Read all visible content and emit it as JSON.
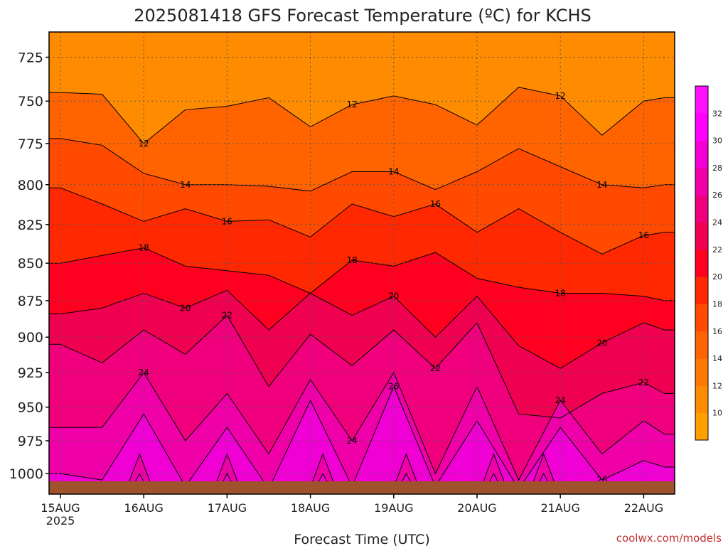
{
  "chart_data": {
    "type": "heatmap",
    "title": "2025081418 GFS Forecast Temperature (ºC) for KCHS",
    "xlabel": "Forecast Time (UTC)",
    "ylabel": "",
    "watermark": "coolwx.com/models",
    "x_ticks": [
      "15AUG",
      "16AUG",
      "17AUG",
      "18AUG",
      "19AUG",
      "20AUG",
      "21AUG",
      "22AUG"
    ],
    "x_year": "2025",
    "y_ticks": [
      725,
      750,
      775,
      800,
      825,
      850,
      875,
      900,
      925,
      950,
      975,
      1000
    ],
    "ylim": [
      1016,
      711
    ],
    "y_scale": "log",
    "colorbar": {
      "ticks": [
        10,
        12,
        14,
        16,
        18,
        20,
        22,
        24,
        26,
        28,
        30,
        32
      ],
      "colors": [
        "#ffa000",
        "#ff8c00",
        "#ff7800",
        "#ff6400",
        "#ff4a00",
        "#ff2800",
        "#ff0020",
        "#f00050",
        "#f0007c",
        "#f000a8",
        "#f000d4",
        "#ff00ff",
        "#ff10ff"
      ]
    },
    "isotherm_levels": [
      10,
      12,
      14,
      16,
      18,
      20,
      22,
      24,
      26,
      28,
      30,
      32
    ],
    "series": [
      {
        "isotherm": 12,
        "x": [
          0,
          0.5,
          1.0,
          1.5,
          2.0,
          2.5,
          3.0,
          3.5,
          4.0,
          4.5,
          5.0,
          5.5,
          6.0,
          6.5,
          7.0,
          7.25
        ],
        "pressure": [
          745,
          746,
          775,
          755,
          753,
          748,
          765,
          752,
          747,
          752,
          764,
          742,
          747,
          770,
          750,
          748
        ]
      },
      {
        "isotherm": 14,
        "x": [
          0,
          0.5,
          1.0,
          1.5,
          2.0,
          2.5,
          3.0,
          3.5,
          4.0,
          4.5,
          5.0,
          5.5,
          6.0,
          6.5,
          7.0,
          7.25
        ],
        "pressure": [
          772,
          776,
          793,
          800,
          800,
          801,
          804,
          792,
          792,
          803,
          792,
          778,
          789,
          800,
          802,
          800
        ]
      },
      {
        "isotherm": 16,
        "x": [
          0,
          0.5,
          1.0,
          1.5,
          2.0,
          2.5,
          3.0,
          3.5,
          4.0,
          4.5,
          5.0,
          5.5,
          6.0,
          6.5,
          7.0,
          7.25
        ],
        "pressure": [
          802,
          812,
          823,
          815,
          823,
          822,
          833,
          812,
          820,
          812,
          830,
          815,
          830,
          844,
          832,
          830
        ]
      },
      {
        "isotherm": 18,
        "x": [
          0,
          0.5,
          1.0,
          1.5,
          2.0,
          2.5,
          3.0,
          3.5,
          4.0,
          4.5,
          5.0,
          5.5,
          6.0,
          6.5,
          7.0,
          7.25
        ],
        "pressure": [
          850,
          845,
          840,
          852,
          855,
          858,
          870,
          848,
          852,
          843,
          860,
          866,
          870,
          870,
          872,
          875
        ]
      },
      {
        "isotherm": 20,
        "x": [
          0,
          0.5,
          1.0,
          1.5,
          2.0,
          2.5,
          3.0,
          3.5,
          4.0,
          4.5,
          5.0,
          5.5,
          6.0,
          6.5,
          7.0,
          7.25
        ],
        "pressure": [
          884,
          880,
          870,
          880,
          868,
          895,
          870,
          885,
          872,
          900,
          872,
          906,
          922,
          904,
          890,
          895
        ]
      },
      {
        "isotherm": 22,
        "x": [
          0,
          0.5,
          1.0,
          1.5,
          2.0,
          2.5,
          3.0,
          3.5,
          4.0,
          4.5,
          5.0,
          5.5,
          6.0,
          6.5,
          7.0,
          7.25
        ],
        "pressure": [
          905,
          918,
          895,
          912,
          885,
          935,
          898,
          920,
          895,
          922,
          890,
          955,
          958,
          940,
          932,
          940
        ]
      },
      {
        "isotherm": 24,
        "x": [
          0,
          0.5,
          1.0,
          1.5,
          2.0,
          2.5,
          3.0,
          3.5,
          4.0,
          4.5,
          5.0,
          5.5,
          6.0,
          6.5,
          7.0,
          7.25
        ],
        "pressure": [
          965,
          965,
          925,
          975,
          940,
          985,
          930,
          975,
          925,
          1000,
          935,
          1005,
          945,
          985,
          960,
          970
        ]
      },
      {
        "isotherm": 26,
        "x": [
          0,
          0.5,
          1.0,
          1.5,
          2.0,
          2.5,
          3.0,
          3.5,
          4.0,
          4.5,
          5.0,
          5.5,
          6.0,
          6.5,
          7.0,
          7.25
        ],
        "pressure": [
          1000,
          1005,
          955,
          1010,
          965,
          1012,
          945,
          1010,
          935,
          1010,
          960,
          1012,
          965,
          1005,
          990,
          995
        ]
      }
    ]
  }
}
